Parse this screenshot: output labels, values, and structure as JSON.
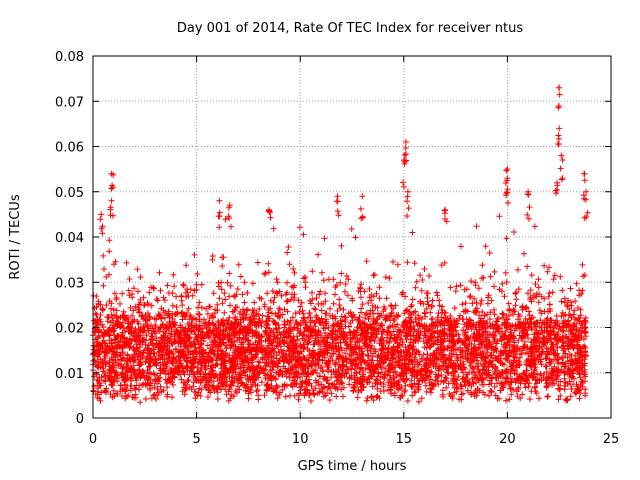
{
  "chart_data": {
    "type": "scatter",
    "title": "Day 001 of 2014, Rate Of TEC Index for receiver ntus",
    "xlabel": "GPS time / hours",
    "ylabel": "ROTI / TECUs",
    "xlim": [
      0,
      25
    ],
    "ylim": [
      0,
      0.08
    ],
    "x_ticks": [
      0,
      5,
      10,
      15,
      20,
      25
    ],
    "x_tick_labels": [
      "0",
      "5",
      "10",
      "15",
      "20",
      "25"
    ],
    "y_ticks": [
      0,
      0.01,
      0.02,
      0.03,
      0.04,
      0.05,
      0.06,
      0.07,
      0.08
    ],
    "y_tick_labels": [
      "0",
      "0.01",
      "0.02",
      "0.03",
      "0.04",
      "0.05",
      "0.06",
      "0.07",
      "0.08"
    ],
    "grid": true,
    "marker": "+",
    "marker_color": "#ff0000",
    "series": [
      {
        "name": "ROTI",
        "x_range": [
          0,
          23.8
        ],
        "typical_range": [
          0.005,
          0.02
        ],
        "notable_points": [
          {
            "x": 0.9,
            "y": 0.054
          },
          {
            "x": 0.9,
            "y": 0.048
          },
          {
            "x": 0.4,
            "y": 0.045
          },
          {
            "x": 6.1,
            "y": 0.048
          },
          {
            "x": 6.6,
            "y": 0.047
          },
          {
            "x": 8.5,
            "y": 0.046
          },
          {
            "x": 11.8,
            "y": 0.049
          },
          {
            "x": 13.0,
            "y": 0.049
          },
          {
            "x": 15.1,
            "y": 0.061
          },
          {
            "x": 15.0,
            "y": 0.057
          },
          {
            "x": 15.2,
            "y": 0.05
          },
          {
            "x": 17.0,
            "y": 0.046
          },
          {
            "x": 20.0,
            "y": 0.055
          },
          {
            "x": 20.0,
            "y": 0.053
          },
          {
            "x": 21.0,
            "y": 0.05
          },
          {
            "x": 22.5,
            "y": 0.073
          },
          {
            "x": 22.5,
            "y": 0.064
          },
          {
            "x": 22.6,
            "y": 0.058
          },
          {
            "x": 22.4,
            "y": 0.052
          },
          {
            "x": 23.7,
            "y": 0.054
          },
          {
            "x": 23.8,
            "y": 0.05
          }
        ]
      }
    ]
  }
}
